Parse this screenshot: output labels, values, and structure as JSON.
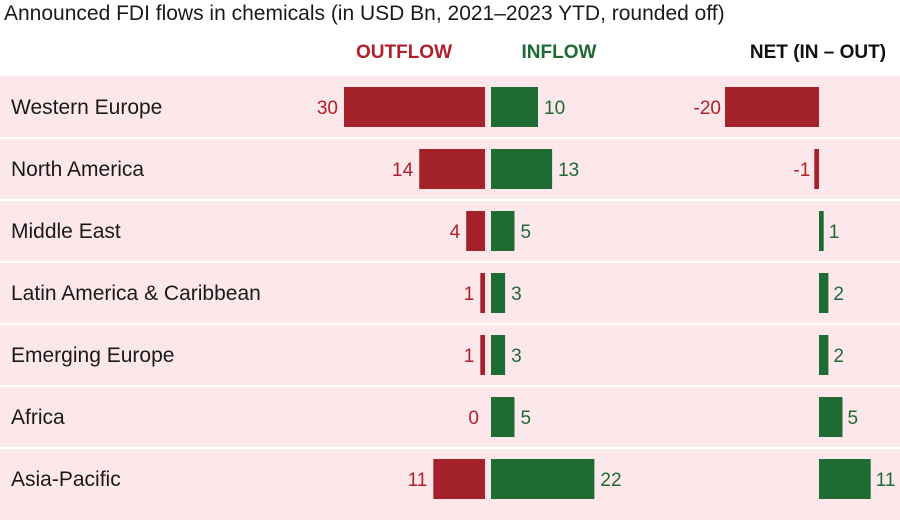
{
  "title": "Announced FDI flows in chemicals (in USD Bn, 2021–2023 YTD, rounded off)",
  "headers": {
    "outflow": "OUTFLOW",
    "inflow": "INFLOW",
    "net": "NET (IN – OUT)"
  },
  "colors": {
    "outflow": "#a4222a",
    "inflow": "#1f6b34",
    "background": "#fce8ea"
  },
  "chart_data": {
    "type": "bar",
    "title": "Announced FDI flows in chemicals (in USD Bn, 2021–2023 YTD, rounded off)",
    "categories": [
      "Western Europe",
      "North America",
      "Middle East",
      "Latin America & Caribbean",
      "Emerging Europe",
      "Africa",
      "Asia-Pacific"
    ],
    "series": [
      {
        "name": "OUTFLOW",
        "values": [
          30,
          14,
          4,
          1,
          1,
          0,
          11
        ],
        "labels": [
          "30",
          "14",
          "4",
          "1",
          "1",
          "0",
          "11"
        ]
      },
      {
        "name": "INFLOW",
        "values": [
          10,
          13,
          5,
          3,
          3,
          5,
          22
        ],
        "labels": [
          "10",
          "13",
          "5",
          "3",
          "3",
          "5",
          "22"
        ]
      },
      {
        "name": "NET (IN – OUT)",
        "values": [
          -20,
          -1,
          1,
          2,
          2,
          5,
          11
        ],
        "labels": [
          "-20",
          "-1",
          "1",
          "2",
          "2",
          "5",
          "11"
        ]
      }
    ],
    "units": "USD Bn",
    "xlabel": "",
    "ylabel": ""
  }
}
